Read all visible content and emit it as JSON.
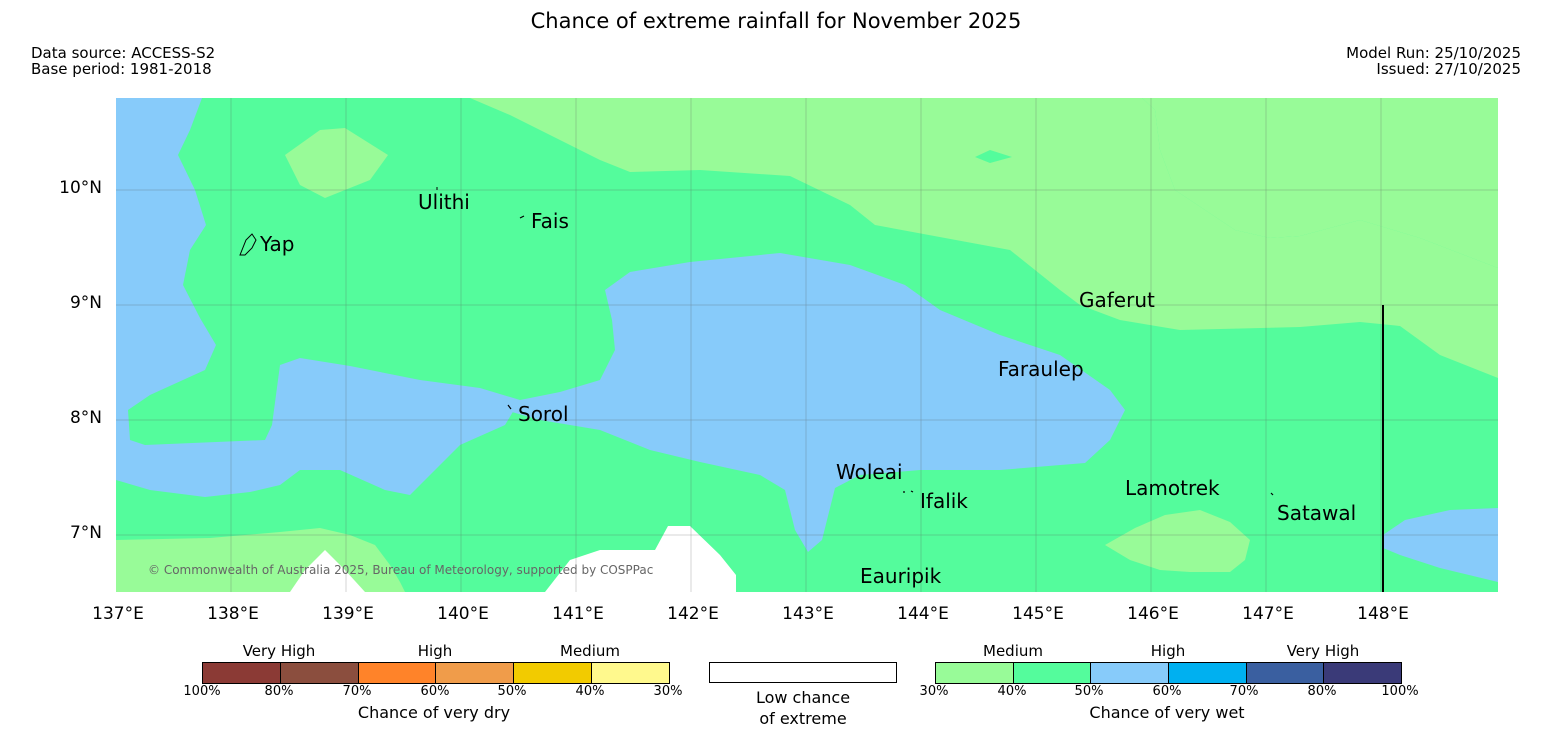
{
  "title": "Chance of extreme rainfall for November 2025",
  "header": {
    "data_source": "Data source: ACCESS-S2",
    "base_period": "Base period: 1981-2018",
    "model_run": "Model Run: 25/10/2025",
    "issued": "Issued: 27/10/2025"
  },
  "map": {
    "lat_labels": [
      "10°N",
      "9°N",
      "8°N",
      "7°N"
    ],
    "lon_labels": [
      "137°E",
      "138°E",
      "139°E",
      "140°E",
      "141°E",
      "142°E",
      "143°E",
      "144°E",
      "145°E",
      "146°E",
      "147°E",
      "148°E"
    ],
    "places": {
      "yap": "Yap",
      "ulithi": "Ulithi",
      "fais": "Fais",
      "sorol": "Sorol",
      "gaferut": "Gaferut",
      "faraulep": "Faraulep",
      "woleai": "Woleai",
      "ifalik": "Ifalik",
      "lamotrek": "Lamotrek",
      "satawal": "Satawal",
      "eauripik": "Eauripik"
    },
    "copyright": "© Commonwealth of Australia 2025, Bureau of Meteorology, supported by COSPPac",
    "colors": {
      "medium_wet": "#98fb98",
      "high_wet_40": "#54fc9c",
      "high_wet_50": "#87cbfa",
      "low_chance": "#ffffff"
    }
  },
  "legend": {
    "dry": {
      "groups": [
        "Very High",
        "High",
        "Medium"
      ],
      "ticks": [
        "100%",
        "80%",
        "70%",
        "60%",
        "50%",
        "40%",
        "30%"
      ],
      "colors": [
        "#8b3a35",
        "#8b4e3e",
        "#ff8329",
        "#f09c4a",
        "#f2cb00",
        "#fff98d"
      ],
      "title": "Chance of very dry"
    },
    "neutral": {
      "line1": "Low chance",
      "line2": "of extreme",
      "color": "#ffffff"
    },
    "wet": {
      "groups": [
        "Medium",
        "High",
        "Very High"
      ],
      "ticks": [
        "30%",
        "40%",
        "50%",
        "60%",
        "70%",
        "80%",
        "100%"
      ],
      "colors": [
        "#98fb98",
        "#54fc9c",
        "#87cbfa",
        "#00b0f0",
        "#3a5fa0",
        "#3a3a78"
      ],
      "title": "Chance of very wet"
    }
  }
}
